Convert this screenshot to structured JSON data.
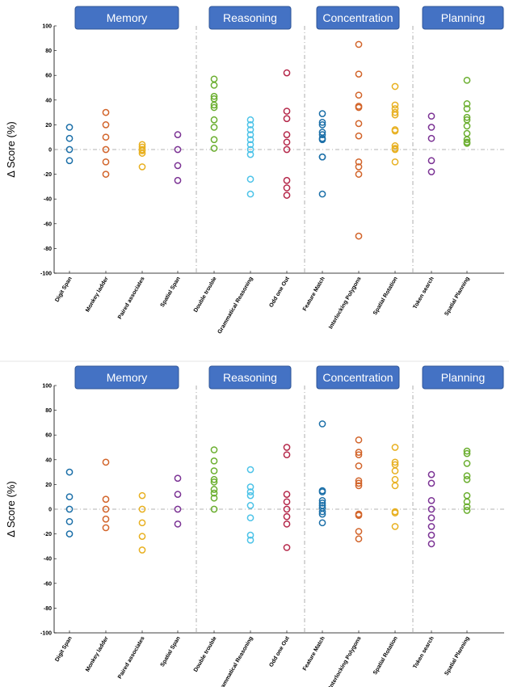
{
  "chart_data": [
    {
      "type": "scatter",
      "ylabel": "Δ Score (%)",
      "ylim": [
        -100,
        100
      ],
      "yticks": [
        -100,
        -80,
        -60,
        -40,
        -20,
        0,
        20,
        40,
        60,
        80,
        100
      ],
      "categories": [
        "Digit Span",
        "Monkey ladder",
        "Paired associates",
        "Spatial Span",
        "Double trouble",
        "Grammatical Reasoning",
        "Odd one Out",
        "Feature Match",
        "Interlocking Polygons",
        "Spatial Rotation",
        "Token search",
        "Spatial Planning"
      ],
      "groups": [
        {
          "label": "Memory",
          "categories": [
            0,
            1,
            2,
            3
          ]
        },
        {
          "label": "Reasoning",
          "categories": [
            4,
            5,
            6
          ]
        },
        {
          "label": "Concentration",
          "categories": [
            7,
            8,
            9
          ]
        },
        {
          "label": "Planning",
          "categories": [
            10,
            11
          ]
        }
      ],
      "series": [
        {
          "category": "Digit Span",
          "color": "#1b6fa8",
          "values": [
            18,
            9,
            0,
            -9
          ]
        },
        {
          "category": "Monkey ladder",
          "color": "#d2642a",
          "values": [
            30,
            20,
            10,
            0,
            -10,
            -20
          ]
        },
        {
          "category": "Paired associates",
          "color": "#e8b020",
          "values": [
            4,
            2,
            0,
            -1,
            -3,
            -14
          ]
        },
        {
          "category": "Spatial Span",
          "color": "#7b3294",
          "values": [
            12,
            0,
            -13,
            -25
          ]
        },
        {
          "category": "Double trouble",
          "color": "#6aae2e",
          "values": [
            57,
            52,
            43,
            41,
            36,
            34,
            24,
            18,
            8,
            1
          ]
        },
        {
          "category": "Grammatical Reasoning",
          "color": "#4cc3e8",
          "values": [
            24,
            20,
            16,
            12,
            8,
            4,
            0,
            -4,
            -24,
            -36
          ]
        },
        {
          "category": "Odd one Out",
          "color": "#b5284a",
          "values": [
            62,
            31,
            25,
            12,
            6,
            0,
            -25,
            -31,
            -37
          ]
        },
        {
          "category": "Feature Match",
          "color": "#1b6fa8",
          "values": [
            29,
            22,
            20,
            14,
            12,
            9,
            8,
            -6,
            -6,
            -36
          ]
        },
        {
          "category": "Interlocking Polygons",
          "color": "#d2642a",
          "values": [
            85,
            61,
            44,
            35,
            34,
            21,
            11,
            -10,
            -14,
            -20,
            -70
          ]
        },
        {
          "category": "Spatial Rotation",
          "color": "#e8b020",
          "values": [
            51,
            36,
            33,
            30,
            28,
            16,
            15,
            3,
            1,
            0,
            -10
          ]
        },
        {
          "category": "Token search",
          "color": "#7b3294",
          "values": [
            27,
            18,
            9,
            -9,
            -18
          ]
        },
        {
          "category": "Spatial Planning",
          "color": "#6aae2e",
          "values": [
            56,
            37,
            33,
            26,
            24,
            19,
            13,
            8,
            6,
            5
          ]
        }
      ]
    },
    {
      "type": "scatter",
      "ylabel": "Δ Score (%)",
      "ylim": [
        -100,
        100
      ],
      "yticks": [
        -100,
        -80,
        -60,
        -40,
        -20,
        0,
        20,
        40,
        60,
        80,
        100
      ],
      "categories": [
        "Digit Span",
        "Monkey ladder",
        "Paired associates",
        "Spatial Span",
        "Double trouble",
        "Grammatical Reasoning",
        "Odd one Out",
        "Feature Match",
        "Interlocking Polygons",
        "Spatial Rotation",
        "Token search",
        "Spatial Planning"
      ],
      "groups": [
        {
          "label": "Memory",
          "categories": [
            0,
            1,
            2,
            3
          ]
        },
        {
          "label": "Reasoning",
          "categories": [
            4,
            5,
            6
          ]
        },
        {
          "label": "Concentration",
          "categories": [
            7,
            8,
            9
          ]
        },
        {
          "label": "Planning",
          "categories": [
            10,
            11
          ]
        }
      ],
      "series": [
        {
          "category": "Digit Span",
          "color": "#1b6fa8",
          "values": [
            30,
            10,
            0,
            -10,
            -20
          ]
        },
        {
          "category": "Monkey ladder",
          "color": "#d2642a",
          "values": [
            38,
            8,
            0,
            -8,
            -15
          ]
        },
        {
          "category": "Paired associates",
          "color": "#e8b020",
          "values": [
            11,
            0,
            -11,
            -22,
            -33
          ]
        },
        {
          "category": "Spatial Span",
          "color": "#7b3294",
          "values": [
            25,
            12,
            0,
            -12
          ]
        },
        {
          "category": "Double trouble",
          "color": "#6aae2e",
          "values": [
            48,
            39,
            31,
            24,
            22,
            16,
            13,
            9,
            0
          ]
        },
        {
          "category": "Grammatical Reasoning",
          "color": "#4cc3e8",
          "values": [
            32,
            18,
            14,
            11,
            3,
            -7,
            -21,
            -25
          ]
        },
        {
          "category": "Odd one Out",
          "color": "#b5284a",
          "values": [
            50,
            44,
            12,
            6,
            0,
            -6,
            -12,
            -31
          ]
        },
        {
          "category": "Feature Match",
          "color": "#1b6fa8",
          "values": [
            69,
            15,
            14,
            7,
            5,
            3,
            1,
            -2,
            -4,
            -11
          ]
        },
        {
          "category": "Interlocking Polygons",
          "color": "#d2642a",
          "values": [
            56,
            46,
            44,
            35,
            23,
            21,
            19,
            -4,
            -5,
            -18,
            -24
          ]
        },
        {
          "category": "Spatial Rotation",
          "color": "#e8b020",
          "values": [
            50,
            38,
            36,
            31,
            24,
            19,
            -2,
            -3,
            -14
          ]
        },
        {
          "category": "Token search",
          "color": "#7b3294",
          "values": [
            28,
            21,
            7,
            0,
            -7,
            -14,
            -21,
            -28
          ]
        },
        {
          "category": "Spatial Planning",
          "color": "#6aae2e",
          "values": [
            47,
            45,
            37,
            27,
            24,
            11,
            6,
            2,
            -1
          ]
        }
      ]
    }
  ]
}
